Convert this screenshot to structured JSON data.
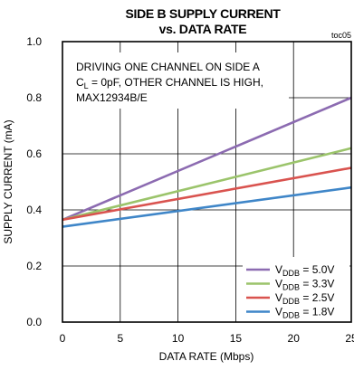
{
  "chart_data": {
    "type": "line",
    "title": [
      "SIDE B SUPPLY CURRENT",
      "vs. DATA RATE"
    ],
    "figure_code": "toc05",
    "xlabel": "DATA RATE (Mbps)",
    "ylabel": "SUPPLY CURRENT (mA)",
    "xlim": [
      0,
      25
    ],
    "ylim": [
      0.0,
      1.0
    ],
    "xticks": [
      0,
      5,
      10,
      15,
      20,
      25
    ],
    "yticks": [
      0.0,
      0.2,
      0.4,
      0.6,
      0.8,
      1.0
    ],
    "x_tick_labels": [
      "0",
      "5",
      "10",
      "15",
      "20",
      "25"
    ],
    "y_tick_labels": [
      "0.0",
      "0.2",
      "0.4",
      "0.6",
      "0.8",
      "1.0"
    ],
    "grid": true,
    "annotation": [
      "DRIVING ONE CHANNEL ON SIDE A",
      "C",
      "L",
      " = 0pF, OTHER CHANNEL IS HIGH,",
      "MAX12934B/E"
    ],
    "legend_position": "bottom-right",
    "series": [
      {
        "name_main": "V",
        "name_sub": "DDB",
        "name_suffix": " = 5.0V",
        "color": "#8c6bb1",
        "x": [
          0,
          25
        ],
        "y": [
          0.365,
          0.8
        ]
      },
      {
        "name_main": "V",
        "name_sub": "DDB",
        "name_suffix": " = 3.3V",
        "color": "#9bc46b",
        "x": [
          0,
          25
        ],
        "y": [
          0.365,
          0.62
        ]
      },
      {
        "name_main": "V",
        "name_sub": "DDB",
        "name_suffix": " = 2.5V",
        "color": "#d9534f",
        "x": [
          0,
          25
        ],
        "y": [
          0.365,
          0.55
        ]
      },
      {
        "name_main": "V",
        "name_sub": "DDB",
        "name_suffix": " = 1.8V",
        "color": "#3f86c8",
        "x": [
          0,
          25
        ],
        "y": [
          0.34,
          0.48
        ]
      }
    ]
  }
}
